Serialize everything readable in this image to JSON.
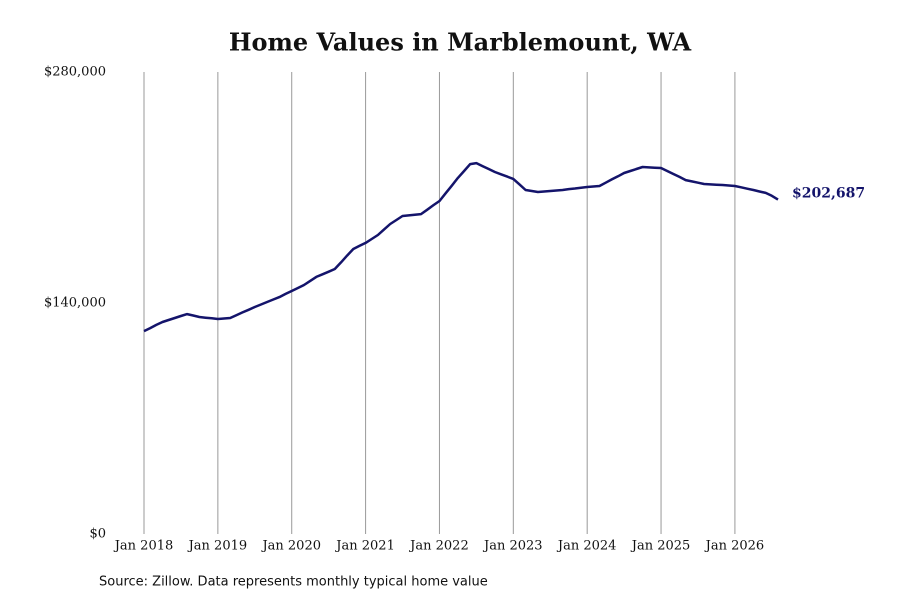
{
  "chart_data": {
    "type": "line",
    "title": "Home Values in Marblemount, WA",
    "source": "Source: Zillow. Data represents monthly typical home value",
    "x": [
      "2018-01",
      "2018-02",
      "2018-03",
      "2018-04",
      "2018-05",
      "2018-06",
      "2018-07",
      "2018-08",
      "2018-09",
      "2018-10",
      "2018-11",
      "2018-12",
      "2019-01",
      "2019-02",
      "2019-03",
      "2019-04",
      "2019-05",
      "2019-06",
      "2019-07",
      "2019-08",
      "2019-09",
      "2019-10",
      "2019-11",
      "2019-12",
      "2020-01",
      "2020-02",
      "2020-03",
      "2020-04",
      "2020-05",
      "2020-06",
      "2020-07",
      "2020-08",
      "2020-09",
      "2020-10",
      "2020-11",
      "2020-12",
      "2021-01",
      "2021-02",
      "2021-03",
      "2021-04",
      "2021-05",
      "2021-06",
      "2021-07",
      "2021-08",
      "2021-09",
      "2021-10",
      "2021-11",
      "2021-12",
      "2022-01",
      "2022-02",
      "2022-03",
      "2022-04",
      "2022-05",
      "2022-06",
      "2022-07",
      "2022-08",
      "2022-09",
      "2022-10",
      "2022-11",
      "2022-12",
      "2023-01",
      "2023-02",
      "2023-03",
      "2023-04",
      "2023-05",
      "2023-06",
      "2023-07",
      "2023-08",
      "2023-09",
      "2023-10",
      "2023-11",
      "2023-12",
      "2024-01",
      "2024-02",
      "2024-03",
      "2024-04",
      "2024-05",
      "2024-06",
      "2024-07",
      "2024-08",
      "2024-09",
      "2024-10",
      "2024-11",
      "2024-12",
      "2025-01",
      "2025-02",
      "2025-03",
      "2025-04",
      "2025-05",
      "2025-06",
      "2025-07",
      "2025-08",
      "2025-09",
      "2025-10",
      "2025-11",
      "2025-12",
      "2026-01",
      "2026-02",
      "2026-03",
      "2026-04",
      "2026-05",
      "2026-06",
      "2026-07",
      "2026-08"
    ],
    "series": [
      {
        "name": "Marblemount, WA",
        "color": "#14146b",
        "values": [
          123000,
          124800,
          126700,
          128500,
          129700,
          130900,
          132100,
          133300,
          132400,
          131500,
          131100,
          130700,
          130300,
          130600,
          130900,
          132600,
          134300,
          135900,
          137600,
          139100,
          140600,
          142100,
          143600,
          145500,
          147300,
          149100,
          150900,
          153400,
          155800,
          157400,
          159000,
          160600,
          164600,
          168700,
          172700,
          174600,
          176400,
          178800,
          181200,
          184600,
          187900,
          190300,
          192700,
          193100,
          193500,
          193900,
          196500,
          199200,
          201800,
          206500,
          211100,
          215800,
          220000,
          224200,
          224800,
          223000,
          221200,
          219400,
          218000,
          216600,
          215200,
          211900,
          208500,
          207900,
          207300,
          207600,
          207900,
          208200,
          208500,
          209000,
          209400,
          209900,
          210300,
          210600,
          210900,
          212900,
          214900,
          216800,
          218800,
          220000,
          221200,
          222400,
          222200,
          222000,
          221800,
          220000,
          218200,
          216400,
          214500,
          213700,
          212900,
          212100,
          211900,
          211700,
          211500,
          211200,
          210900,
          210100,
          209300,
          208500,
          207600,
          206700,
          205000,
          202687
        ],
        "value_labels": [
          null,
          null,
          null,
          null,
          null,
          null,
          null,
          null,
          null,
          null,
          null,
          null,
          null,
          null,
          null,
          null,
          null,
          null,
          null,
          null,
          null,
          null,
          null,
          null,
          null,
          null,
          null,
          null,
          null,
          null,
          null,
          null,
          null,
          null,
          null,
          null,
          null,
          null,
          null,
          null,
          null,
          null,
          null,
          null,
          null,
          null,
          null,
          null,
          null,
          null,
          null,
          null,
          null,
          null,
          null,
          null,
          null,
          null,
          null,
          null,
          null,
          null,
          null,
          null,
          null,
          null,
          null,
          null,
          null,
          null,
          null,
          null,
          null,
          null,
          null,
          null,
          null,
          null,
          null,
          null,
          null,
          null,
          null,
          null,
          null,
          null,
          null,
          null,
          null,
          null,
          null,
          null,
          null,
          null,
          null,
          null,
          null,
          null,
          null,
          null,
          null,
          null,
          null,
          "$202,687"
        ]
      }
    ],
    "xlim": [
      "2018-01",
      "2026-08"
    ],
    "xticks": [
      {
        "value": "2018-01",
        "label": "Jan 2018"
      },
      {
        "value": "2019-01",
        "label": "Jan 2019"
      },
      {
        "value": "2020-01",
        "label": "Jan 2020"
      },
      {
        "value": "2021-01",
        "label": "Jan 2021"
      },
      {
        "value": "2022-01",
        "label": "Jan 2022"
      },
      {
        "value": "2023-01",
        "label": "Jan 2023"
      },
      {
        "value": "2024-01",
        "label": "Jan 2024"
      },
      {
        "value": "2025-01",
        "label": "Jan 2025"
      },
      {
        "value": "2026-01",
        "label": "Jan 2026"
      }
    ],
    "ylim": [
      0,
      280000
    ],
    "yticks": [
      {
        "value": 0,
        "label": "$0"
      },
      {
        "value": 140000,
        "label": "$140,000"
      },
      {
        "value": 280000,
        "label": "$280,000"
      }
    ],
    "grid": "x"
  }
}
